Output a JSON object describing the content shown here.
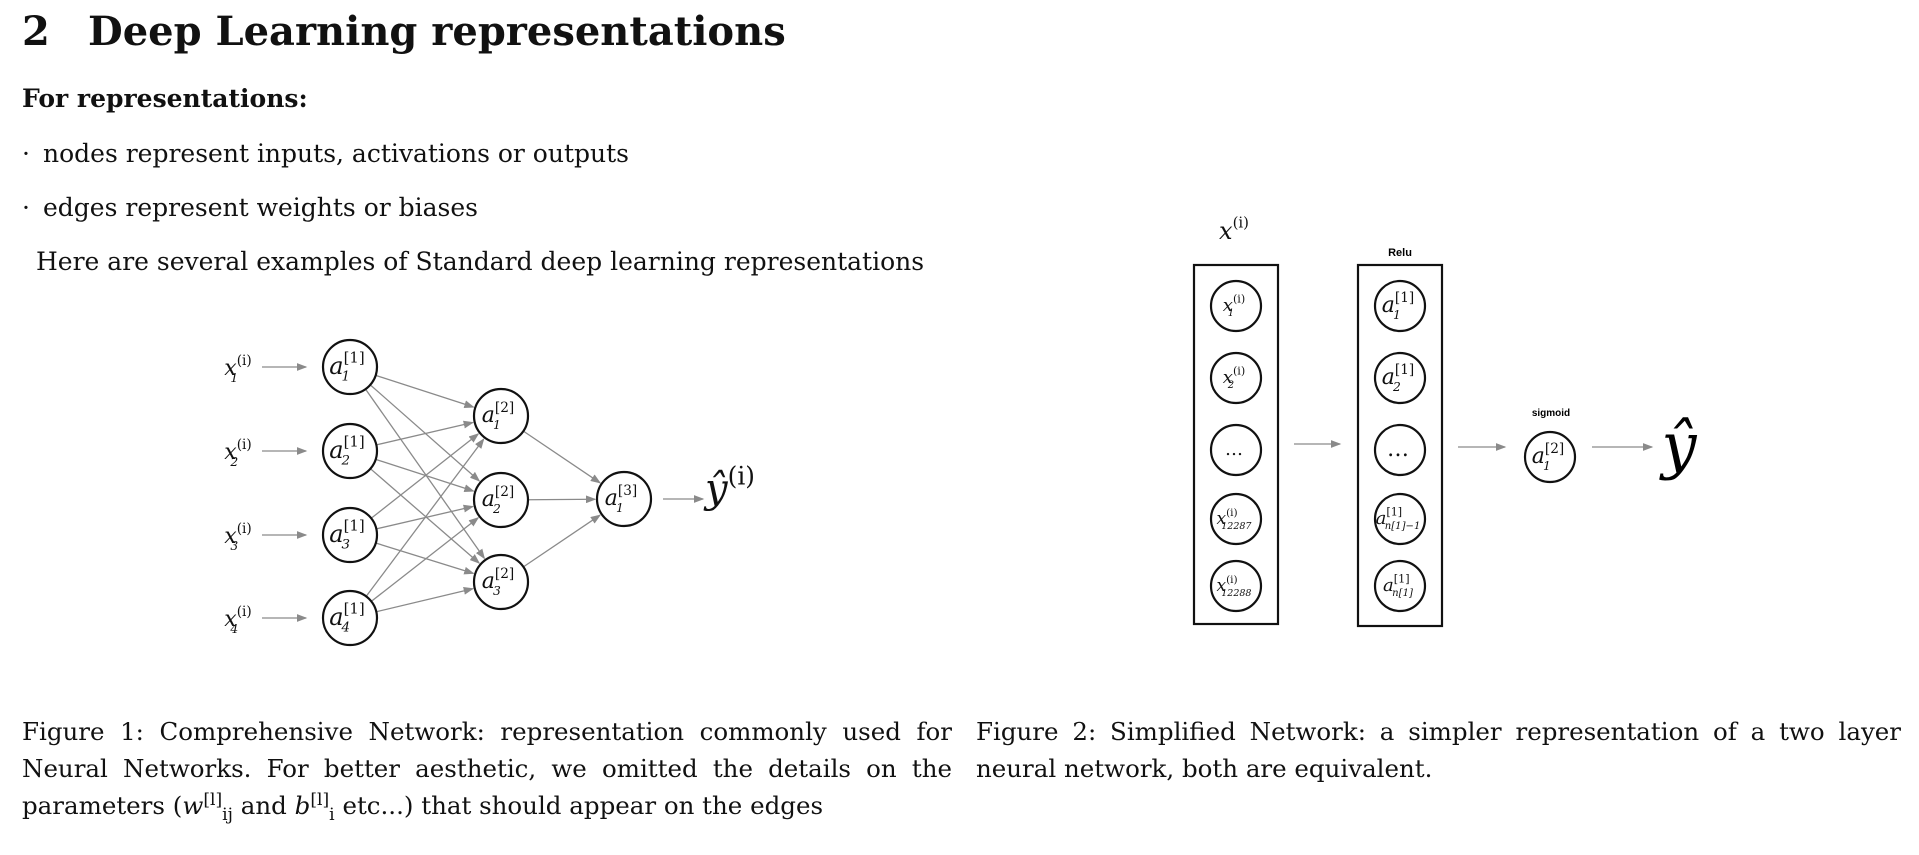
{
  "section": {
    "number": "2",
    "title": "Deep Learning representations"
  },
  "subheading": "For representations:",
  "bullets": [
    {
      "marker": "·",
      "text": "nodes represent inputs, activations or outputs"
    },
    {
      "marker": "·",
      "text": "edges represent weights or biases"
    }
  ],
  "intro": "Here are several examples of Standard deep learning representations",
  "figure1": {
    "inputs": [
      {
        "base": "x",
        "sup": "(i)",
        "sub": "1"
      },
      {
        "base": "x",
        "sup": "(i)",
        "sub": "2"
      },
      {
        "base": "x",
        "sup": "(i)",
        "sub": "3"
      },
      {
        "base": "x",
        "sup": "(i)",
        "sub": "4"
      }
    ],
    "layer1": [
      {
        "base": "a",
        "sup": "[1]",
        "sub": "1"
      },
      {
        "base": "a",
        "sup": "[1]",
        "sub": "2"
      },
      {
        "base": "a",
        "sup": "[1]",
        "sub": "3"
      },
      {
        "base": "a",
        "sup": "[1]",
        "sub": "4"
      }
    ],
    "layer2": [
      {
        "base": "a",
        "sup": "[2]",
        "sub": "1"
      },
      {
        "base": "a",
        "sup": "[2]",
        "sub": "2"
      },
      {
        "base": "a",
        "sup": "[2]",
        "sub": "3"
      }
    ],
    "layer3": [
      {
        "base": "a",
        "sup": "[3]",
        "sub": "1"
      }
    ],
    "output": {
      "base": "ŷ",
      "sup": "(i)"
    },
    "caption": {
      "prefix": "Figure 1: Comprehensive Network: representation commonly used for Neural Networks. For better aesthetic, we omitted the details on the parameters (",
      "w_base": "w",
      "w_sup": "[l]",
      "w_sub": "ij",
      "middle": " and ",
      "b_base": "b",
      "b_sup": "[l]",
      "b_sub": "i",
      "suffix": " etc...) that should appear on the edges"
    }
  },
  "figure2": {
    "input_label": {
      "base": "x",
      "sup": "(i)"
    },
    "inputs": [
      {
        "base": "x",
        "sup": "(i)",
        "sub": "1"
      },
      {
        "base": "x",
        "sup": "(i)",
        "sub": "2"
      },
      {
        "base": "…",
        "sup": "",
        "sub": ""
      },
      {
        "base": "x",
        "sup": "(i)",
        "sub": "12287"
      },
      {
        "base": "x",
        "sup": "(i)",
        "sub": "12288"
      }
    ],
    "hidden_label": "Relu",
    "hidden": [
      {
        "base": "a",
        "sup": "[1]",
        "sub": "1"
      },
      {
        "base": "a",
        "sup": "[1]",
        "sub": "2"
      },
      {
        "base": "…",
        "sup": "",
        "sub": ""
      },
      {
        "base": "a",
        "sup": "[1]",
        "sub": "n[1]−1"
      },
      {
        "base": "a",
        "sup": "[1]",
        "sub": "n[1]"
      }
    ],
    "output_label": "sigmoid",
    "output_node": {
      "base": "a",
      "sup": "[2]",
      "sub": "1"
    },
    "final": "ŷ",
    "caption": "Figure 2: Simplified Network: a simpler representation of a two layer neural network, both are equivalent."
  },
  "colors": {
    "edge": "#8a8a8a",
    "node": "#111111",
    "text": "#111111"
  }
}
